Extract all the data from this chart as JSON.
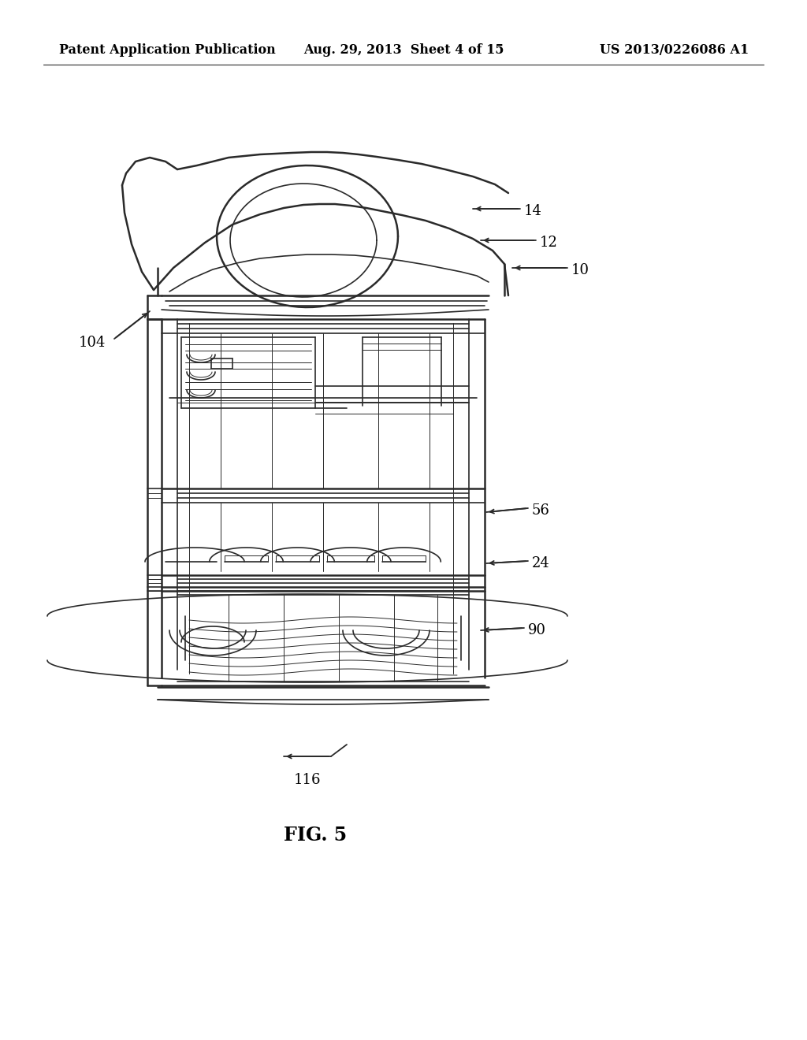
{
  "bg": "#ffffff",
  "ink": "#2a2a2a",
  "header_left": "Patent Application Publication",
  "header_mid": "Aug. 29, 2013  Sheet 4 of 15",
  "header_right": "US 2013/0226086 A1",
  "fig_caption": "FIG. 5",
  "lw_outer": 1.8,
  "lw_mid": 1.2,
  "lw_thin": 0.7,
  "lw_fine": 0.5
}
